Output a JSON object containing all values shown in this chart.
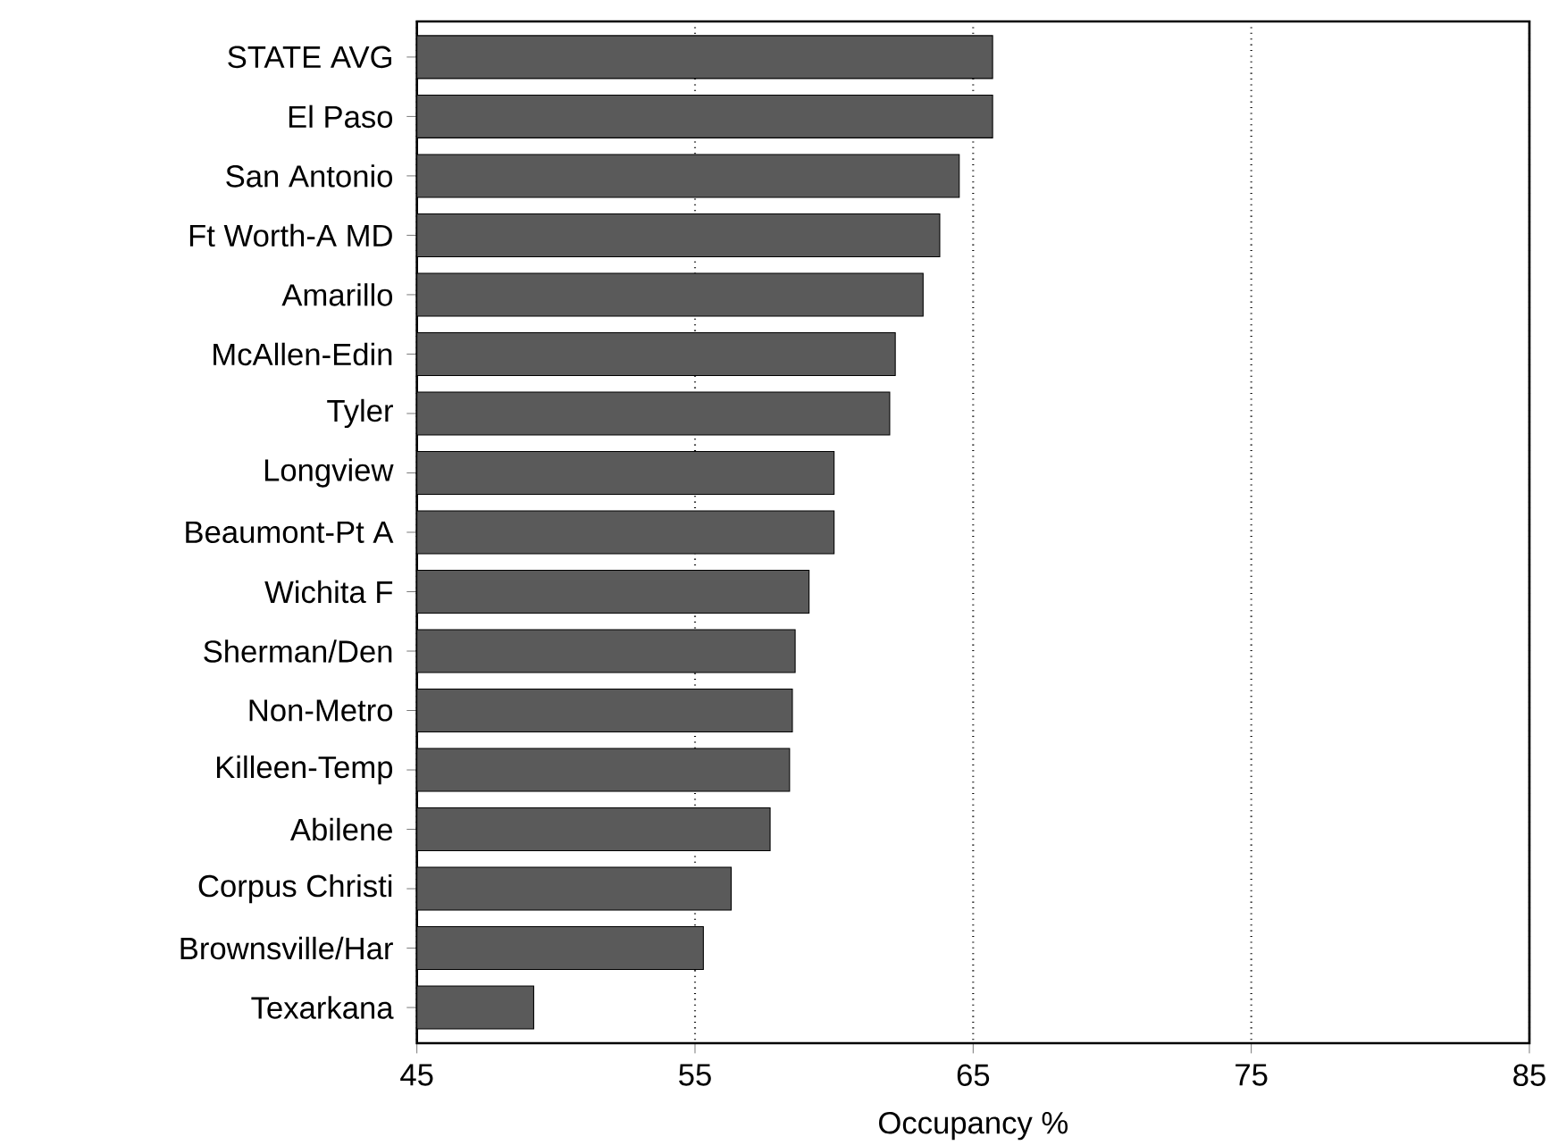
{
  "chart_data": {
    "type": "bar",
    "orientation": "horizontal",
    "xlabel": "Occupancy %",
    "categories": [
      "STATE AVG",
      "El Paso",
      "San Antonio",
      "Ft Worth-A MD",
      "Amarillo",
      "McAllen-Edin",
      "Tyler",
      "Longview",
      "Beaumont-Pt A",
      "Wichita F",
      "Sherman/Den",
      "Non-Metro",
      "Killeen-Temp",
      "Abilene",
      "Corpus Christi",
      "Brownsville/Har",
      "Texarkana"
    ],
    "values": [
      65.7,
      65.7,
      64.5,
      63.8,
      63.2,
      62.2,
      62.0,
      60.0,
      60.0,
      59.1,
      58.6,
      58.5,
      58.4,
      57.7,
      56.3,
      55.3,
      49.2
    ],
    "color": "#5a5a5a",
    "xlim": [
      45,
      85
    ],
    "xticks": [
      45,
      55,
      65,
      75,
      85
    ],
    "grid": "x"
  }
}
